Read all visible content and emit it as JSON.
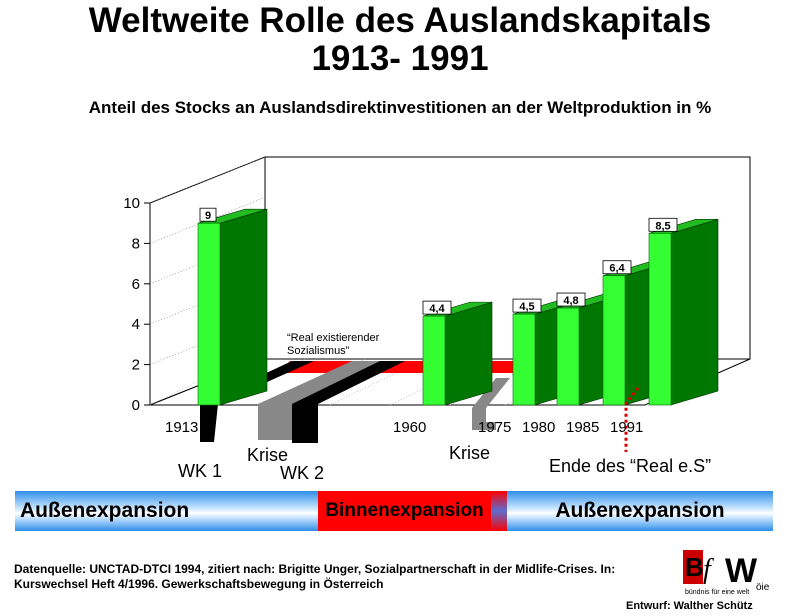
{
  "title_line1": "Weltweite Rolle des Auslandskapitals",
  "title_line2": "1913- 1991",
  "subtitle": "Anteil des Stocks an Auslandsdirektinvestitionen an der Weltproduktion in %",
  "chart_data": {
    "type": "bar",
    "categories": [
      "1913",
      "1960",
      "1975",
      "1980",
      "1985",
      "1991"
    ],
    "values": [
      9,
      4.4,
      4.5,
      4.8,
      6.4,
      8.5
    ],
    "value_labels": [
      "9",
      "4,4",
      "4,5",
      "4,8",
      "6,4",
      "8,5"
    ],
    "ylim": [
      0,
      10
    ],
    "yticks": [
      "0",
      "2",
      "4",
      "6",
      "8",
      "10"
    ],
    "xtick_labels": [
      "1913",
      "1960",
      "1975",
      "1980",
      "1985",
      "1991"
    ],
    "style": "3d",
    "bar_color": "#33ff33",
    "bar_side_color": "#007700",
    "annotations": {
      "real_soz": [
        "“Real existierender",
        "Sozialismus”"
      ],
      "wk1": "WK 1",
      "wk2": "WK 2",
      "krise1": "Krise",
      "krise2": "Krise",
      "ende": "Ende des “Real e.S”"
    }
  },
  "bands": {
    "aussen1": "Außenexpansion",
    "binnen": "Binnenexpansion",
    "aussen2": "Außenexpansion"
  },
  "source": "Datenquelle: UNCTAD-DTCI 1994, zitiert nach: Brigitte Unger, Sozialpartnerschaft in der Midlife-Crises.  In: Kurswechsel Heft 4/1996.  Gewerkschaftsbewegung in Österreich",
  "credit": "Entwurf: Walther Schütz",
  "logo": {
    "text": "bündnis für eine welt",
    "mark": "BfW",
    "suffix": "öie"
  }
}
